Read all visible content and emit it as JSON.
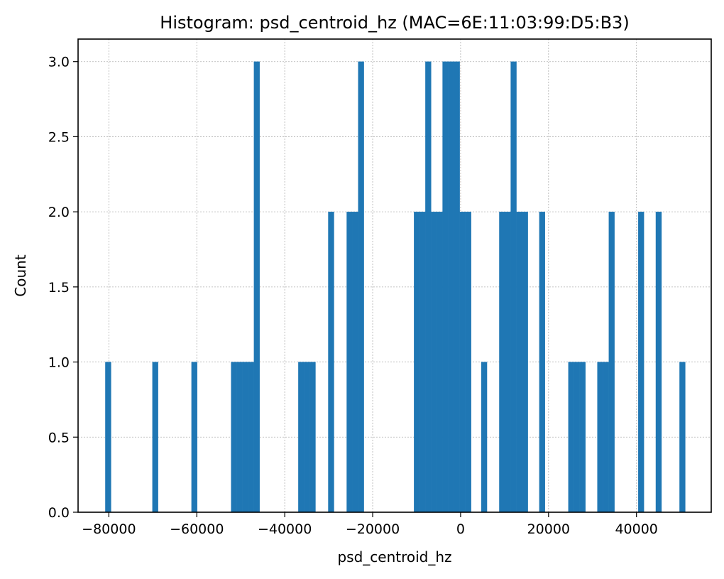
{
  "chart_data": {
    "type": "bar",
    "title": "Histogram: psd_centroid_hz (MAC=6E:11:03:99:D5:B3)",
    "xlabel": "psd_centroid_hz",
    "ylabel": "Count",
    "xlim": [
      -87000,
      57000
    ],
    "ylim": [
      0,
      3.15
    ],
    "grid": true,
    "bar_color": "#1f77b4",
    "bin_width": 1300,
    "x_ticks": [
      {
        "value": -80000,
        "label": "−80000"
      },
      {
        "value": -60000,
        "label": "−60000"
      },
      {
        "value": -40000,
        "label": "−40000"
      },
      {
        "value": -20000,
        "label": "−20000"
      },
      {
        "value": 0,
        "label": "0"
      },
      {
        "value": 20000,
        "label": "20000"
      },
      {
        "value": 40000,
        "label": "40000"
      }
    ],
    "y_ticks": [
      {
        "value": 0,
        "label": "0.0"
      },
      {
        "value": 0.5,
        "label": "0.5"
      },
      {
        "value": 1,
        "label": "1.0"
      },
      {
        "value": 1.5,
        "label": "1.5"
      },
      {
        "value": 2,
        "label": "2.0"
      },
      {
        "value": 2.5,
        "label": "2.5"
      },
      {
        "value": 3,
        "label": "3.0"
      }
    ],
    "bins": [
      {
        "x0": -80800,
        "x1": -79500,
        "count": 1
      },
      {
        "x0": -70100,
        "x1": -68800,
        "count": 1
      },
      {
        "x0": -61200,
        "x1": -59900,
        "count": 1
      },
      {
        "x0": -52200,
        "x1": -50900,
        "count": 1
      },
      {
        "x0": -50900,
        "x1": -49600,
        "count": 1
      },
      {
        "x0": -49600,
        "x1": -48300,
        "count": 1
      },
      {
        "x0": -48300,
        "x1": -47000,
        "count": 1
      },
      {
        "x0": -47000,
        "x1": -45700,
        "count": 3
      },
      {
        "x0": -36900,
        "x1": -35600,
        "count": 1
      },
      {
        "x0": -35600,
        "x1": -34300,
        "count": 1
      },
      {
        "x0": -34300,
        "x1": -33000,
        "count": 1
      },
      {
        "x0": -30100,
        "x1": -28800,
        "count": 2
      },
      {
        "x0": -25900,
        "x1": -24600,
        "count": 2
      },
      {
        "x0": -24600,
        "x1": -23300,
        "count": 2
      },
      {
        "x0": -23300,
        "x1": -22000,
        "count": 3
      },
      {
        "x0": -10600,
        "x1": -9300,
        "count": 2
      },
      {
        "x0": -9300,
        "x1": -8000,
        "count": 2
      },
      {
        "x0": -8000,
        "x1": -6700,
        "count": 3
      },
      {
        "x0": -6700,
        "x1": -5400,
        "count": 2
      },
      {
        "x0": -5400,
        "x1": -4100,
        "count": 2
      },
      {
        "x0": -4100,
        "x1": -2800,
        "count": 3
      },
      {
        "x0": -2800,
        "x1": -1500,
        "count": 3
      },
      {
        "x0": -1500,
        "x1": -200,
        "count": 3
      },
      {
        "x0": -200,
        "x1": 1100,
        "count": 2
      },
      {
        "x0": 1100,
        "x1": 2400,
        "count": 2
      },
      {
        "x0": 4700,
        "x1": 6000,
        "count": 1
      },
      {
        "x0": 8800,
        "x1": 10100,
        "count": 2
      },
      {
        "x0": 10100,
        "x1": 11400,
        "count": 2
      },
      {
        "x0": 11400,
        "x1": 12700,
        "count": 3
      },
      {
        "x0": 12700,
        "x1": 14000,
        "count": 2
      },
      {
        "x0": 14000,
        "x1": 15300,
        "count": 2
      },
      {
        "x0": 17900,
        "x1": 19200,
        "count": 2
      },
      {
        "x0": 24500,
        "x1": 25800,
        "count": 1
      },
      {
        "x0": 25800,
        "x1": 27100,
        "count": 1
      },
      {
        "x0": 27100,
        "x1": 28400,
        "count": 1
      },
      {
        "x0": 31100,
        "x1": 32400,
        "count": 1
      },
      {
        "x0": 32400,
        "x1": 33700,
        "count": 1
      },
      {
        "x0": 33700,
        "x1": 35000,
        "count": 2
      },
      {
        "x0": 40400,
        "x1": 41700,
        "count": 2
      },
      {
        "x0": 44400,
        "x1": 45700,
        "count": 2
      },
      {
        "x0": 49800,
        "x1": 51100,
        "count": 1
      }
    ]
  }
}
